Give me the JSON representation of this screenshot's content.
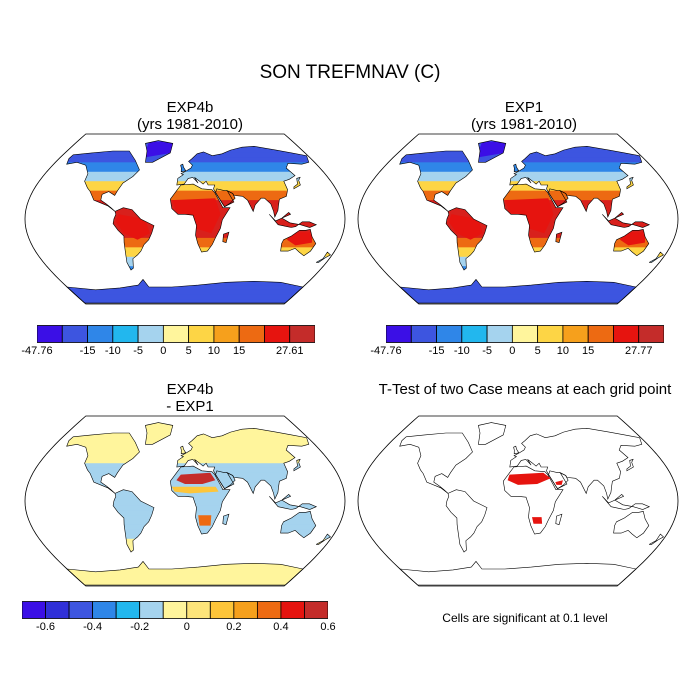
{
  "figure_title": "SON TREFMNAV (C)",
  "panels": [
    {
      "id": "exp4b",
      "title_line1": "EXP4b",
      "title_line2": "(yrs 1981-2010)"
    },
    {
      "id": "exp1",
      "title_line1": "EXP1",
      "title_line2": "(yrs 1981-2010)"
    },
    {
      "id": "diff",
      "title_line1": "EXP4b",
      "title_line2": "- EXP1"
    },
    {
      "id": "ttest",
      "title_line1": "T-Test of two Case means at each grid point",
      "title_line2": ""
    }
  ],
  "colorbars": [
    {
      "id": "exp4b-colorbar",
      "colors": [
        "#3b0fe6",
        "#3d55e0",
        "#2f86e8",
        "#22b7ee",
        "#a5d3ee",
        "#fff59c",
        "#fdd545",
        "#f6a01c",
        "#ed6a12",
        "#e6140f",
        "#c42c2a"
      ],
      "labels": [
        "-47.76",
        "-15",
        "-10",
        "-5",
        "0",
        "5",
        "10",
        "15",
        "27.61"
      ],
      "label_positions": [
        0,
        2,
        3,
        4,
        5,
        6,
        7,
        8,
        10
      ]
    },
    {
      "id": "exp1-colorbar",
      "colors": [
        "#3b0fe6",
        "#3d55e0",
        "#2f86e8",
        "#22b7ee",
        "#a5d3ee",
        "#fff59c",
        "#fdd545",
        "#f6a01c",
        "#ed6a12",
        "#e6140f",
        "#c42c2a"
      ],
      "labels": [
        "-47.76",
        "-15",
        "-10",
        "-5",
        "0",
        "5",
        "10",
        "15",
        "27.77"
      ],
      "label_positions": [
        0,
        2,
        3,
        4,
        5,
        6,
        7,
        8,
        10
      ]
    },
    {
      "id": "diff-colorbar",
      "colors": [
        "#3b0fe6",
        "#3030d8",
        "#3d55e0",
        "#2f86e8",
        "#22b7ee",
        "#a5d3ee",
        "#fff59c",
        "#fde47a",
        "#fdc53a",
        "#f6a01c",
        "#ed6a12",
        "#e6140f",
        "#c42c2a"
      ],
      "labels": [
        "-0.6",
        "-0.4",
        "-0.2",
        "0",
        "0.2",
        "0.4",
        "0.6"
      ],
      "label_positions": [
        1,
        3,
        5,
        7,
        9,
        11,
        13
      ]
    }
  ],
  "significance_note": "Cells are significant at 0.1 level",
  "map_colors": {
    "land_outline": "#000000",
    "cold": "#3d55e0",
    "cool": "#2f86e8",
    "mild": "#a5d3ee",
    "warm": "#fdd545",
    "hot": "#ed6a12",
    "very_hot": "#d8201c",
    "diff_light": "#fff59c",
    "diff_blue": "#a5d3ee",
    "sig": "#e6140f"
  }
}
